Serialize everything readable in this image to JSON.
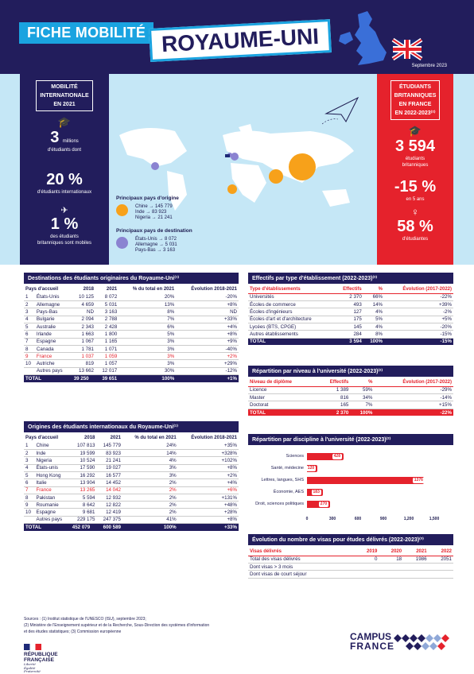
{
  "header": {
    "fiche": "FICHE MOBILITÉ",
    "country": "ROYAUME-UNI",
    "date": "Septembre 2023"
  },
  "left": {
    "title": [
      "MOBILITÉ",
      "INTERNATIONALE",
      "EN 2021"
    ],
    "s1_big": "3",
    "s1_unit": "millions",
    "s1_text": "d'étudiants dont",
    "s2_big": "20 %",
    "s2_text": "d'étudiants internationaux",
    "s3_big": "1 %",
    "s3_text": [
      "des étudiants",
      "britanniques sont mobiles"
    ]
  },
  "right": {
    "title": [
      "ÉTUDIANTS",
      "BRITANNIQUES",
      "EN FRANCE",
      "EN 2022-2023⁽²⁾"
    ],
    "s1_big": "3 594",
    "s1_text": [
      "étudiants",
      "britanniques"
    ],
    "s2_big": "-15 %",
    "s2_text": "en 5 ans",
    "s3_big": "58 %",
    "s3_text": "d'étudiantes"
  },
  "map": {
    "origin_title": "Principaux pays d'origine",
    "origin": [
      "Chine → 145 779",
      "Inde → 83 923",
      "Nigeria → 21 241"
    ],
    "dest_title": "Principaux pays de destination",
    "dest": [
      "États-Unis → 8 072",
      "Allemagne → 5 031",
      "Pays-Bas → 3 163"
    ],
    "origin_color": "#f7a11a",
    "dest_color": "#8b83d1"
  },
  "dest_table": {
    "title": "Destinations des étudiants originaires du Royaume-Uni⁽¹⁾",
    "headers": [
      "Pays d'accueil",
      "2018",
      "2021",
      "% du total en 2021",
      "Évolution 2018-2021"
    ],
    "rows": [
      [
        "1",
        "États-Unis",
        "10 125",
        "8 072",
        "20%",
        "-20%"
      ],
      [
        "2",
        "Allemagne",
        "4 659",
        "5 031",
        "13%",
        "+8%"
      ],
      [
        "3",
        "Pays-Bas",
        "ND",
        "3 163",
        "8%",
        "ND"
      ],
      [
        "4",
        "Bulgarie",
        "2 094",
        "2 788",
        "7%",
        "+33%"
      ],
      [
        "5",
        "Australie",
        "2 343",
        "2 428",
        "6%",
        "+4%"
      ],
      [
        "6",
        "Irlande",
        "1 663",
        "1 800",
        "5%",
        "+8%"
      ],
      [
        "7",
        "Espagne",
        "1 067",
        "1 165",
        "3%",
        "+9%"
      ],
      [
        "8",
        "Canada",
        "1 781",
        "1 071",
        "3%",
        "-40%"
      ],
      [
        "9",
        "France",
        "1 037",
        "1 059",
        "3%",
        "+2%"
      ],
      [
        "10",
        "Autriche",
        "819",
        "1 057",
        "3%",
        "+29%"
      ],
      [
        "",
        "Autres pays",
        "13 662",
        "12 017",
        "30%",
        "-12%"
      ]
    ],
    "total": [
      "TOTAL",
      "39 250",
      "39 651",
      "100%",
      "+1%"
    ]
  },
  "orig_table": {
    "title": "Origines des étudiants internationaux du Royaume-Uni⁽¹⁾",
    "headers": [
      "Pays d'accueil",
      "2018",
      "2021",
      "% du total en 2021",
      "Évolution 2018-2021"
    ],
    "rows": [
      [
        "1",
        "Chine",
        "107 813",
        "145 779",
        "24%",
        "+35%"
      ],
      [
        "2",
        "Inde",
        "19 599",
        "83 923",
        "14%",
        "+328%"
      ],
      [
        "3",
        "Nigeria",
        "10 524",
        "21 241",
        "4%",
        "+102%"
      ],
      [
        "4",
        "États-unis",
        "17 590",
        "19 027",
        "3%",
        "+8%"
      ],
      [
        "5",
        "Hong Kong",
        "16 292",
        "16 577",
        "3%",
        "+2%"
      ],
      [
        "6",
        "Italie",
        "13 904",
        "14 452",
        "2%",
        "+4%"
      ],
      [
        "7",
        "France",
        "13 265",
        "14 042",
        "2%",
        "+6%"
      ],
      [
        "8",
        "Pakistan",
        "5 594",
        "12 932",
        "2%",
        "+131%"
      ],
      [
        "9",
        "Roumanie",
        "8 642",
        "12 822",
        "2%",
        "+48%"
      ],
      [
        "10",
        "Espagne",
        "9 681",
        "12 419",
        "2%",
        "+28%"
      ],
      [
        "",
        "Autres pays",
        "229 175",
        "247 375",
        "41%",
        "+8%"
      ]
    ],
    "total": [
      "TOTAL",
      "452 079",
      "600 589",
      "100%",
      "+33%"
    ]
  },
  "etab_table": {
    "title": "Effectifs par type d'établissement (2022-2023)⁽²⁾",
    "headers": [
      "Type d'établissements",
      "Effectifs",
      "%",
      "Évolution (2017-2022)"
    ],
    "rows": [
      [
        "Universités",
        "2 370",
        "66%",
        "-22%"
      ],
      [
        "Écoles de commerce",
        "493",
        "14%",
        "+39%"
      ],
      [
        "Écoles d'ingénieurs",
        "127",
        "4%",
        "-2%"
      ],
      [
        "Écoles d'art et d'architecture",
        "175",
        "5%",
        "+5%"
      ],
      [
        "Lycées (BTS, CPGE)",
        "145",
        "4%",
        "-20%"
      ],
      [
        "Autres établissements",
        "284",
        "8%",
        "-15%"
      ]
    ],
    "total": [
      "TOTAL",
      "3 594",
      "100%",
      "-15%"
    ]
  },
  "niveau_table": {
    "title": "Répartition par niveau à l'université (2022-2023)⁽²⁾",
    "headers": [
      "Niveau de diplôme",
      "Effectifs",
      "%",
      "Évolution (2017-2022)"
    ],
    "rows": [
      [
        "Licence",
        "1 389",
        "59%",
        "-29%"
      ],
      [
        "Master",
        "816",
        "34%",
        "-14%"
      ],
      [
        "Doctorat",
        "165",
        "7%",
        "+15%"
      ]
    ],
    "total": [
      "TOTAL",
      "2 370",
      "100%",
      "-22%"
    ]
  },
  "chart_data": {
    "type": "bar",
    "title": "Répartition par discipline à l'université (2022-2023)⁽²⁾",
    "categories": [
      "Sciences",
      "Santé, médecine",
      "Lettres, langues, SHS",
      "Économie, AES",
      "Droit, sciences politiques"
    ],
    "values": [
      428,
      120,
      1376,
      183,
      270
    ],
    "xlim": [
      0,
      1500
    ],
    "xticks": [
      "0",
      "300",
      "600",
      "900",
      "1,200",
      "1,500"
    ],
    "color": "#e5222c"
  },
  "visa_table": {
    "title": "Évolution du nombre de visas pour études délivrés (2022-2023)⁽³⁾",
    "headers": [
      "Visas délivrés",
      "2019",
      "2020",
      "2021",
      "2022"
    ],
    "rows": [
      [
        "Total des visas délivrés",
        "0",
        "18",
        "1986",
        "2051"
      ],
      [
        "Dont visas > 3 mois",
        "",
        "",
        "",
        ""
      ],
      [
        "Dont visas de court séjour",
        "",
        "",
        "",
        ""
      ]
    ]
  },
  "sources": [
    "Sources : (1) Institut statistique de l'UNESCO (ISU), septembre 2023;",
    "(2) Ministère de l'Enseignement supérieur et de la Recherche, Sous-Direction des systèmes d'information",
    "et des études statistiques; (3) Commission européenne"
  ],
  "footer": {
    "rf": [
      "RÉPUBLIQUE",
      "FRANÇAISE"
    ],
    "motto": [
      "Liberté",
      "Égalité",
      "Fraternité"
    ],
    "campus": [
      "CAMPUS",
      "FRANCE"
    ]
  }
}
